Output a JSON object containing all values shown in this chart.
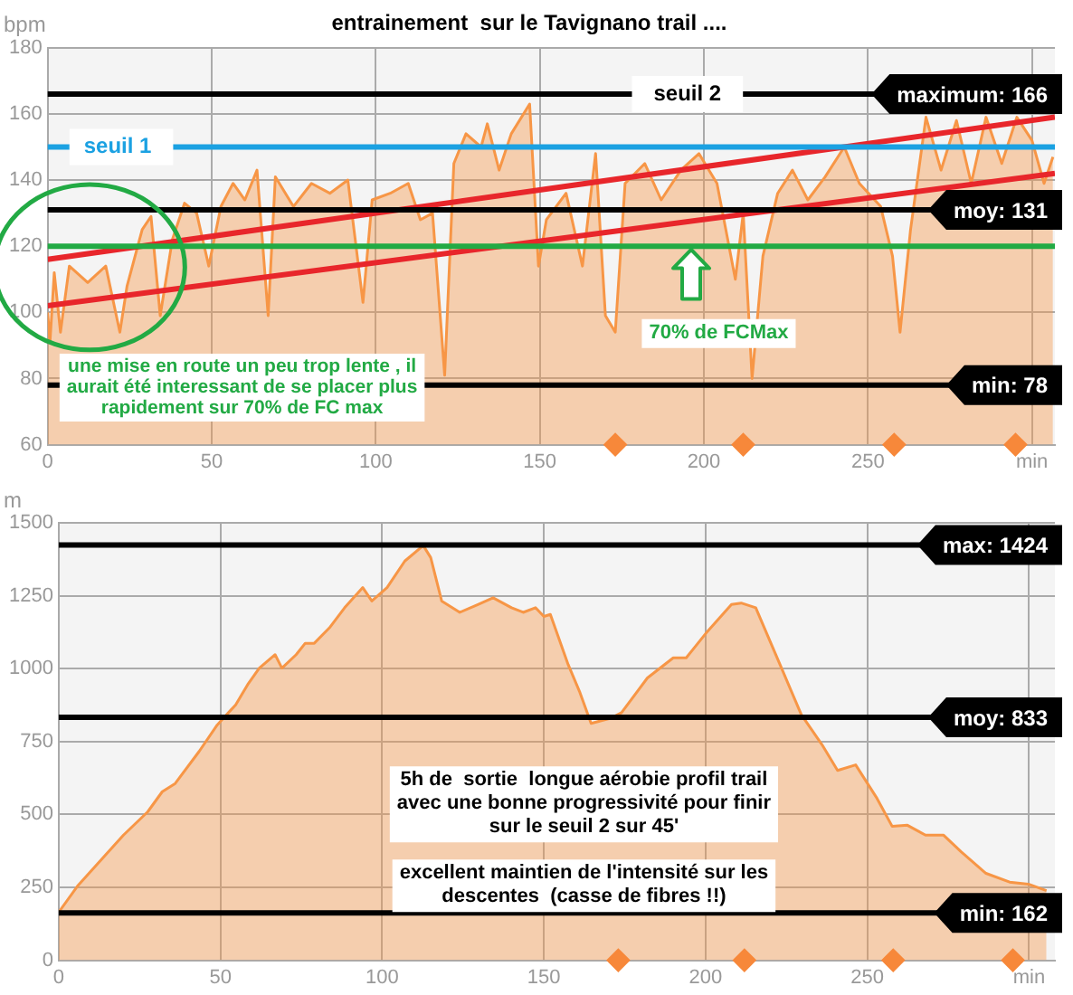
{
  "chart_data": [
    {
      "type": "area",
      "title": "entrainement  sur le Tavignano trail ....",
      "ylabel": "bpm",
      "xlim": [
        0,
        307
      ],
      "xticks": [
        0,
        50,
        100,
        150,
        200,
        250,
        {
          "value": 300,
          "label": "min"
        }
      ],
      "ylim": [
        60,
        180
      ],
      "yticks": [
        60,
        80,
        100,
        120,
        140,
        160,
        180
      ],
      "grid": true,
      "legend": false,
      "series": [
        {
          "color": "#f79646",
          "x": [
            0,
            0.7,
            2,
            3.9,
            6.6,
            12.2,
            17.7,
            22,
            24.2,
            28.8,
            31.5,
            34.3,
            38,
            41.7,
            45.4,
            49.1,
            52.8,
            56.5,
            60.1,
            63.8,
            67.2,
            69.4,
            74.9,
            80.4,
            86,
            91.5,
            96.1,
            98.9,
            104.4,
            109.9,
            113.6,
            117.3,
            121,
            123.8,
            127.5,
            132.1,
            134,
            137.6,
            141.3,
            146.9,
            149.6,
            152,
            158,
            163,
            167,
            170,
            173,
            176,
            182,
            187,
            193,
            198.5,
            204,
            209.6,
            212,
            214.7,
            218,
            222.5,
            227,
            231.7,
            237,
            242.8,
            247.4,
            253.9,
            257.5,
            259.8,
            263,
            267.7,
            272.3,
            277,
            281.5,
            286,
            290.8,
            295.4,
            300,
            303.7,
            306.4
          ],
          "values": [
            100,
            91,
            112,
            94,
            114,
            109,
            114,
            94,
            108,
            125,
            129,
            99,
            122,
            133,
            130,
            114,
            132,
            139,
            134,
            143,
            99,
            141,
            132,
            139,
            136,
            140,
            103,
            134,
            136,
            139,
            128,
            130,
            81,
            145,
            154,
            150,
            157,
            143,
            154,
            163,
            114,
            128,
            136,
            114,
            148,
            99,
            94,
            139,
            145,
            134,
            143,
            148,
            139,
            110,
            130,
            80,
            117,
            136,
            143,
            134,
            141,
            150,
            139,
            132,
            117,
            94,
            125,
            159,
            143,
            158,
            139,
            159,
            145,
            159,
            152,
            139,
            147
          ]
        },
        {
          "type": "line",
          "color": "#e8262b",
          "x": [
            0,
            307
          ],
          "values": [
            116,
            159
          ]
        },
        {
          "type": "line",
          "color": "#e8262b",
          "x": [
            0,
            307
          ],
          "values": [
            102,
            142
          ]
        },
        {
          "type": "scatter",
          "color": "#f7883a",
          "marker": "diamond",
          "x": [
            173,
            212,
            258,
            295
          ],
          "values": [
            60,
            60,
            60,
            60
          ]
        }
      ],
      "ref_lines": [
        {
          "axis": "y",
          "value": 166,
          "label": "maximum: 166",
          "color": "#000000"
        },
        {
          "axis": "y",
          "value": 131,
          "label": "moy: 131",
          "color": "#000000"
        },
        {
          "axis": "y",
          "value": 78,
          "label": "min: 78",
          "color": "#000000"
        },
        {
          "axis": "y",
          "value": 150,
          "label": "seuil 1",
          "color": "#1ba1e2"
        },
        {
          "axis": "y",
          "value": 120,
          "color": "#22aa44"
        }
      ],
      "annotations": [
        {
          "text": "seuil 2",
          "x": 195,
          "y": 166
        },
        "70% de FCMax",
        "une mise en route un peu trop lente , il aurait été interessant de se placer plus  rapidement sur 70% de FC max"
      ]
    },
    {
      "type": "area",
      "ylabel": "m",
      "xlim": [
        0,
        308
      ],
      "xticks": [
        0,
        50,
        100,
        150,
        200,
        250,
        {
          "value": 300,
          "label": "min"
        }
      ],
      "ylim": [
        0,
        1500
      ],
      "yticks": [
        0,
        250,
        500,
        750,
        1000,
        1250,
        1500
      ],
      "grid": true,
      "legend": false,
      "series": [
        {
          "color": "#f79646",
          "x": [
            0,
            6,
            13.5,
            20,
            27.5,
            32,
            36,
            43.4,
            49,
            54.7,
            58.4,
            62,
            66.9,
            69,
            73.4,
            76.2,
            79,
            83.7,
            88.4,
            94,
            96.8,
            101.5,
            107,
            112.7,
            115,
            118.4,
            124,
            129.6,
            134.3,
            140,
            143.6,
            147.4,
            150,
            152,
            157.5,
            161,
            164.6,
            170.6,
            174,
            182,
            190,
            194,
            200.6,
            208,
            211,
            215.5,
            223,
            229.6,
            236,
            240.8,
            246.4,
            253,
            257.7,
            262.4,
            268,
            273.6,
            279,
            286.7,
            294,
            299.8,
            305.4
          ],
          "values": [
            165,
            257,
            349,
            429,
            509,
            578,
            606,
            716,
            807,
            876,
            945,
            1002,
            1048,
            1002,
            1048,
            1087,
            1087,
            1140,
            1209,
            1278,
            1232,
            1278,
            1369,
            1422,
            1381,
            1232,
            1193,
            1220,
            1243,
            1209,
            1193,
            1209,
            1179,
            1186,
            1014,
            922,
            812,
            830,
            849,
            968,
            1037,
            1037,
            1128,
            1220,
            1225,
            1209,
            1014,
            842,
            739,
            651,
            670,
            555,
            459,
            463,
            429,
            429,
            372,
            298,
            268,
            261,
            239
          ]
        },
        {
          "type": "scatter",
          "color": "#f7883a",
          "marker": "diamond",
          "x": [
            173,
            212,
            258,
            295
          ],
          "values": [
            0,
            0,
            0,
            0
          ]
        }
      ],
      "ref_lines": [
        {
          "axis": "y",
          "value": 1424,
          "label": "max: 1424",
          "color": "#000000"
        },
        {
          "axis": "y",
          "value": 833,
          "label": "moy: 833",
          "color": "#000000"
        },
        {
          "axis": "y",
          "value": 162,
          "label": "min: 162",
          "color": "#000000"
        }
      ],
      "annotations": [
        "5h de  sortie  longue aérobie profil trail avec une bonne progressivité pour finir sur le seuil 2 sur 45'",
        "excellent maintien de l'intensité sur les descentes  (casse de fibres !!)"
      ]
    }
  ]
}
